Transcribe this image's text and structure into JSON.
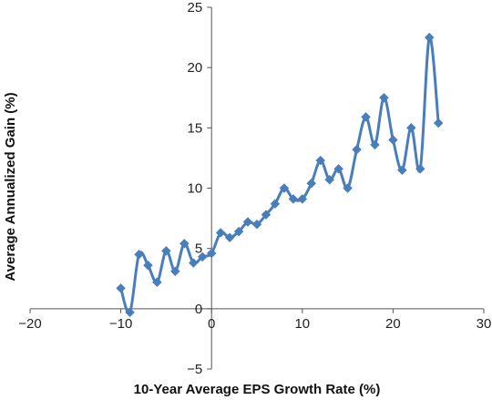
{
  "chart_data": {
    "type": "scatter",
    "title": "",
    "xlabel": "10-Year Average EPS Growth Rate (%)",
    "ylabel": "Average Annualized Gain (%)",
    "xlim": [
      -20,
      30
    ],
    "ylim": [
      -5,
      25
    ],
    "x_ticks": [
      "−20",
      "−10",
      "0",
      "10",
      "20",
      "30"
    ],
    "y_ticks": [
      "−5",
      "0",
      "5",
      "10",
      "15",
      "20",
      "25"
    ],
    "grid": false,
    "legend": "none",
    "line_style": "smoothed line with diamond markers",
    "colors": {
      "series": "#4a7ebb"
    },
    "series": [
      {
        "x": [
          -10,
          -9,
          -8,
          -7,
          -6,
          -5,
          -4,
          -3,
          -2,
          -1,
          0,
          1,
          2,
          3,
          4,
          5,
          6,
          7,
          8,
          9,
          10,
          11,
          12,
          13,
          14,
          15,
          16,
          17,
          18,
          19,
          20,
          21,
          22,
          23,
          24,
          25
        ],
        "y": [
          1.7,
          -0.3,
          4.5,
          3.6,
          2.2,
          4.8,
          3.1,
          5.4,
          3.8,
          4.3,
          4.6,
          6.3,
          5.9,
          6.4,
          7.2,
          7.0,
          7.8,
          8.7,
          10.0,
          9.1,
          9.1,
          10.4,
          12.3,
          10.7,
          11.6,
          10.0,
          13.2,
          15.9,
          13.6,
          17.5,
          14.0,
          11.5,
          15.0,
          11.6,
          22.5,
          15.4
        ]
      }
    ]
  }
}
